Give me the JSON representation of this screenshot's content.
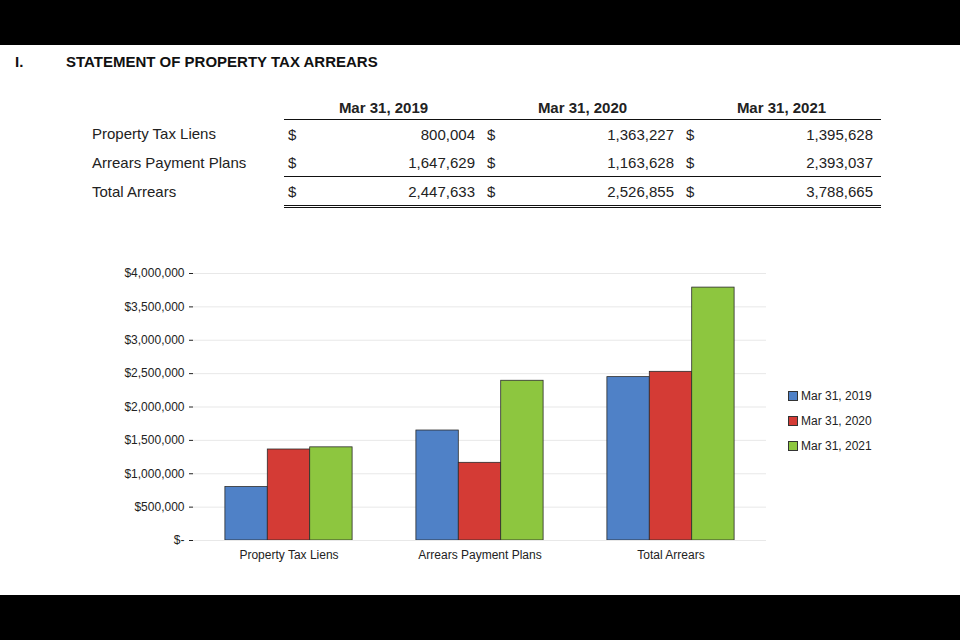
{
  "heading": {
    "number": "I.",
    "title": "STATEMENT OF PROPERTY TAX ARREARS"
  },
  "table": {
    "columns": [
      "Mar 31, 2019",
      "Mar 31, 2020",
      "Mar 31, 2021"
    ],
    "currency": "$",
    "rows": [
      {
        "label": "Property Tax Liens",
        "cells": [
          "800,004",
          "1,363,227",
          "1,395,628"
        ]
      },
      {
        "label": "Arrears Payment Plans",
        "cells": [
          "1,647,629",
          "1,163,628",
          "2,393,037"
        ]
      },
      {
        "label": "Total Arrears",
        "cells": [
          "2,447,633",
          "2,526,855",
          "3,788,665"
        ]
      }
    ]
  },
  "chart_data": {
    "type": "bar",
    "categories": [
      "Property Tax Liens",
      "Arrears Payment Plans",
      "Total Arrears"
    ],
    "series": [
      {
        "name": "Mar 31, 2019",
        "color": "#4f81c7",
        "values": [
          800004,
          1647629,
          2447633
        ]
      },
      {
        "name": "Mar 31, 2020",
        "color": "#d43b35",
        "values": [
          1363227,
          1163628,
          2526855
        ]
      },
      {
        "name": "Mar 31, 2021",
        "color": "#8dc63f",
        "values": [
          1395628,
          2393037,
          3788665
        ]
      }
    ],
    "ylim": [
      0,
      4000000
    ],
    "yticks": [
      {
        "value": 0,
        "label": "$-"
      },
      {
        "value": 500000,
        "label": "$500,000"
      },
      {
        "value": 1000000,
        "label": "$1,000,000"
      },
      {
        "value": 1500000,
        "label": "$1,500,000"
      },
      {
        "value": 2000000,
        "label": "$2,000,000"
      },
      {
        "value": 2500000,
        "label": "$2,500,000"
      },
      {
        "value": 3000000,
        "label": "$3,000,000"
      },
      {
        "value": 3500000,
        "label": "$3,500,000"
      },
      {
        "value": 4000000,
        "label": "$4,000,000"
      }
    ],
    "grid": true,
    "legend": "right"
  }
}
